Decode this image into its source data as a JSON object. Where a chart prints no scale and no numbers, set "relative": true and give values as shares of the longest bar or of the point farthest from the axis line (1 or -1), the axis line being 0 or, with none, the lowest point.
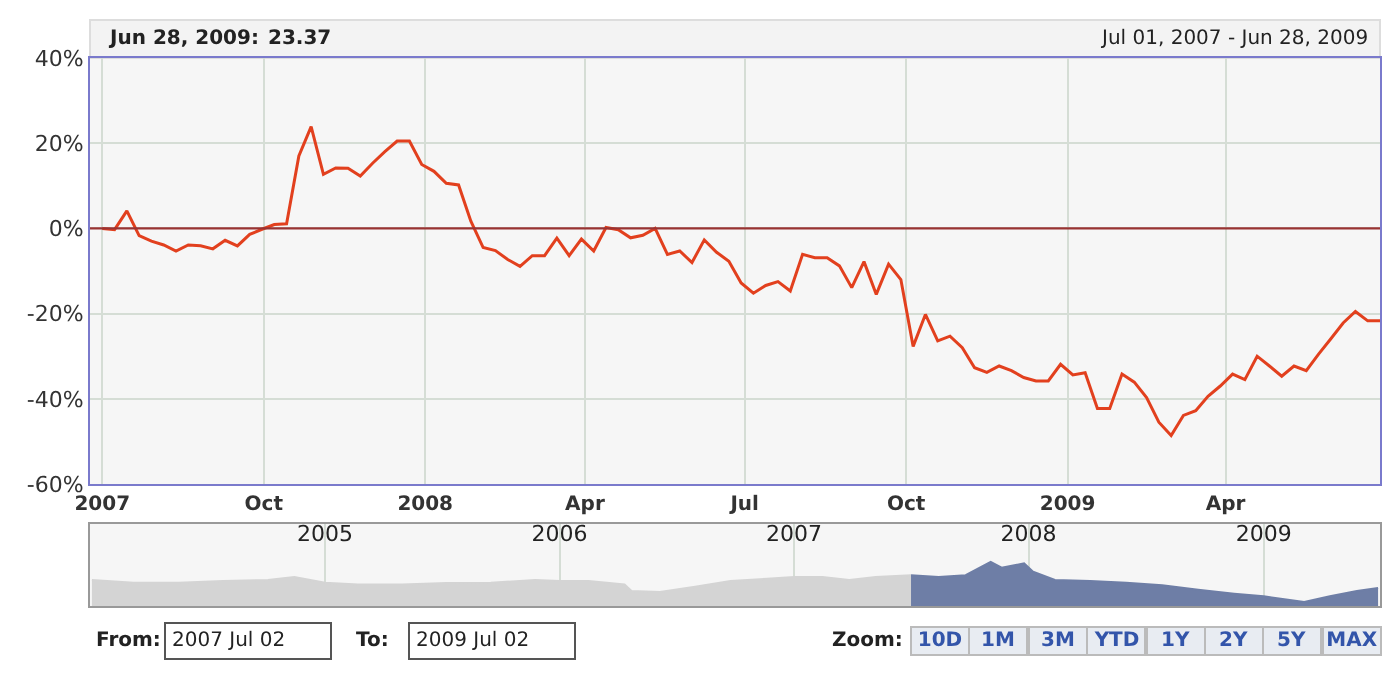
{
  "chart_data": [
    {
      "type": "line",
      "annotations": [
        "Jun 28, 2009:",
        "23.37",
        "Jul 01, 2007 - Jun 28, 2009"
      ],
      "xlim": [
        "2007-06-24",
        "2009-06-28"
      ],
      "ylim": [
        -60,
        40
      ],
      "xticks": [
        {
          "value": "2007-07-01",
          "label": "2007"
        },
        {
          "value": "2007-10-01",
          "label": "Oct"
        },
        {
          "value": "2008-01-01",
          "label": "2008"
        },
        {
          "value": "2008-04-01",
          "label": "Apr"
        },
        {
          "value": "2008-07-01",
          "label": "Jul"
        },
        {
          "value": "2008-10-01",
          "label": "Oct"
        },
        {
          "value": "2009-01-01",
          "label": "2009"
        },
        {
          "value": "2009-04-01",
          "label": "Apr"
        }
      ],
      "yticks": [
        {
          "value": 40,
          "label": "40%"
        },
        {
          "value": 20,
          "label": "20%"
        },
        {
          "value": 0,
          "label": "0%"
        },
        {
          "value": -20,
          "label": "-20%"
        },
        {
          "value": -40,
          "label": "-40%"
        },
        {
          "value": -60,
          "label": "-60%"
        }
      ],
      "grid": true,
      "marker": "none",
      "line_style": "solid",
      "ref_lines": [
        {
          "axis": "y",
          "value": 0,
          "color": "#993333"
        }
      ],
      "series": [
        {
          "color": "#e2401e",
          "x": [
            "2007-07-01",
            "2007-07-08",
            "2007-07-15",
            "2007-07-22",
            "2007-07-29",
            "2007-08-05",
            "2007-08-12",
            "2007-08-19",
            "2007-08-26",
            "2007-09-02",
            "2007-09-09",
            "2007-09-16",
            "2007-09-23",
            "2007-09-30",
            "2007-10-07",
            "2007-10-14",
            "2007-10-21",
            "2007-10-28",
            "2007-11-04",
            "2007-11-11",
            "2007-11-18",
            "2007-11-25",
            "2007-12-02",
            "2007-12-09",
            "2007-12-16",
            "2007-12-23",
            "2007-12-30",
            "2008-01-06",
            "2008-01-13",
            "2008-01-20",
            "2008-01-27",
            "2008-02-03",
            "2008-02-10",
            "2008-02-17",
            "2008-02-24",
            "2008-03-02",
            "2008-03-09",
            "2008-03-16",
            "2008-03-23",
            "2008-03-30",
            "2008-04-06",
            "2008-04-13",
            "2008-04-20",
            "2008-04-27",
            "2008-05-04",
            "2008-05-11",
            "2008-05-18",
            "2008-05-25",
            "2008-06-01",
            "2008-06-08",
            "2008-06-15",
            "2008-06-22",
            "2008-06-29",
            "2008-07-06",
            "2008-07-13",
            "2008-07-20",
            "2008-07-27",
            "2008-08-03",
            "2008-08-10",
            "2008-08-17",
            "2008-08-24",
            "2008-08-31",
            "2008-09-07",
            "2008-09-14",
            "2008-09-21",
            "2008-09-28",
            "2008-10-05",
            "2008-10-12",
            "2008-10-19",
            "2008-10-26",
            "2008-11-02",
            "2008-11-09",
            "2008-11-16",
            "2008-11-23",
            "2008-11-30",
            "2008-12-07",
            "2008-12-14",
            "2008-12-21",
            "2008-12-28",
            "2009-01-04",
            "2009-01-11",
            "2009-01-18",
            "2009-01-25",
            "2009-02-01",
            "2009-02-08",
            "2009-02-15",
            "2009-02-22",
            "2009-03-01",
            "2009-03-08",
            "2009-03-15",
            "2009-03-22",
            "2009-03-29",
            "2009-04-05",
            "2009-04-12",
            "2009-04-19",
            "2009-04-26",
            "2009-05-03",
            "2009-05-10",
            "2009-05-17",
            "2009-05-24",
            "2009-05-31",
            "2009-06-07",
            "2009-06-14",
            "2009-06-21",
            "2009-06-28"
          ],
          "values": [
            0,
            -0.3,
            4.1,
            -1.7,
            -3.0,
            -3.9,
            -5.3,
            -3.9,
            -4.1,
            -4.8,
            -2.8,
            -4.1,
            -1.4,
            -0.2,
            0.9,
            1.1,
            17.0,
            23.9,
            12.7,
            14.2,
            14.1,
            12.3,
            15.3,
            18.0,
            20.5,
            20.5,
            15.0,
            13.4,
            10.6,
            10.2,
            1.7,
            -4.5,
            -5.2,
            -7.3,
            -8.9,
            -6.4,
            -6.4,
            -2.3,
            -6.4,
            -2.5,
            -5.3,
            0.2,
            -0.3,
            -2.2,
            -1.6,
            0,
            -6.1,
            -5.3,
            -8.0,
            -2.7,
            -5.6,
            -7.7,
            -12.8,
            -15.2,
            -13.4,
            -12.5,
            -14.7,
            -6.1,
            -6.9,
            -6.9,
            -8.8,
            -13.9,
            -7.8,
            -15.5,
            -8.4,
            -12.0,
            -27.7,
            -20.2,
            -26.4,
            -25.3,
            -28.0,
            -32.7,
            -33.8,
            -32.3,
            -33.4,
            -35.0,
            -35.8,
            -35.8,
            -31.9,
            -34.4,
            -33.9,
            -42.3,
            -42.3,
            -34.2,
            -36.1,
            -39.7,
            -45.5,
            -48.6,
            -43.9,
            -42.8,
            -39.4,
            -37.0,
            -34.2,
            -35.5,
            -30.0,
            -32.3,
            -34.7,
            -32.3,
            -33.4,
            -29.5,
            -25.9,
            -22.2,
            -19.5,
            -21.7,
            -21.7
          ]
        }
      ]
    },
    {
      "type": "area",
      "relative": true,
      "grid": "x",
      "xlim": [
        "2004-01-01",
        "2009-07-01"
      ],
      "xticks": [
        {
          "value": "2005-01-01",
          "label": "2005"
        },
        {
          "value": "2006-01-01",
          "label": "2006"
        },
        {
          "value": "2007-01-01",
          "label": "2007"
        },
        {
          "value": "2008-01-01",
          "label": "2008"
        },
        {
          "value": "2009-01-01",
          "label": "2009"
        }
      ],
      "series": [
        {
          "color": "#d4d4d4",
          "x": [
            "2004-01-04",
            "2004-03-09",
            "2004-05-18",
            "2004-07-26",
            "2004-10-04",
            "2004-11-14",
            "2005-01-01",
            "2005-02-21",
            "2005-05-01",
            "2005-07-09",
            "2005-09-16",
            "2005-11-24",
            "2006-01-01",
            "2006-02-15",
            "2006-04-12",
            "2006-04-23",
            "2006-06-06",
            "2006-07-31",
            "2006-09-24",
            "2006-11-20",
            "2007-01-01",
            "2007-02-14",
            "2007-03-28",
            "2007-05-08",
            "2007-07-02"
          ],
          "values": [
            0.59,
            0.53,
            0.53,
            0.57,
            0.59,
            0.66,
            0.53,
            0.49,
            0.49,
            0.52,
            0.53,
            0.59,
            0.57,
            0.57,
            0.49,
            0.34,
            0.32,
            0.44,
            0.57,
            0.62,
            0.66,
            0.66,
            0.59,
            0.66,
            0.7
          ]
        },
        {
          "color": "#6e7ea6",
          "x": [
            "2007-07-02",
            "2007-08-14",
            "2007-09-25",
            "2007-11-03",
            "2007-11-20",
            "2007-12-25",
            "2008-01-08",
            "2008-02-11",
            "2008-04-06",
            "2008-06-01",
            "2008-07-27",
            "2008-09-21",
            "2008-11-16",
            "2009-01-01",
            "2009-03-05",
            "2009-04-14",
            "2009-05-26",
            "2009-06-28"
          ],
          "values": [
            0.7,
            0.66,
            0.7,
            1.0,
            0.87,
            0.97,
            0.78,
            0.59,
            0.57,
            0.53,
            0.47,
            0.37,
            0.28,
            0.22,
            0.09,
            0.22,
            0.34,
            0.41
          ]
        }
      ]
    },
    {
      "type": "other",
      "annotations": [
        "From:",
        "2007 Jul 02",
        "To:",
        "2009 Jul 02",
        "Zoom:",
        "10D",
        "1M",
        "3M",
        "YTD",
        "1Y",
        "2Y",
        "5Y",
        "MAX"
      ]
    }
  ]
}
